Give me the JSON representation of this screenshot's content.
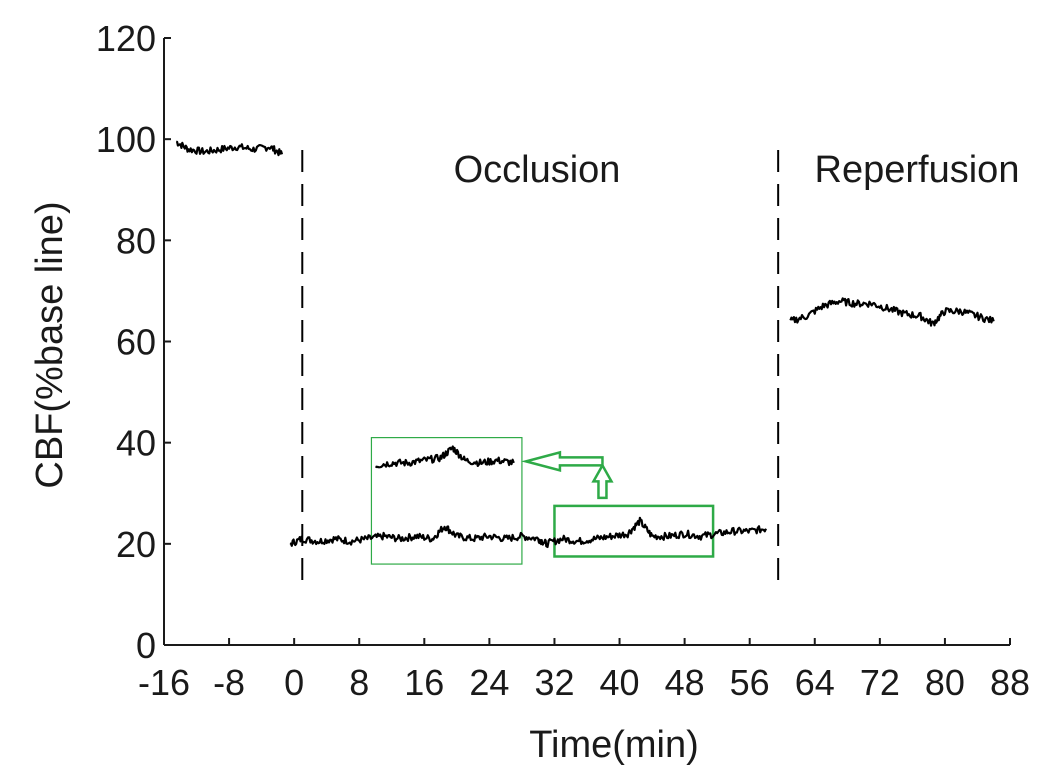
{
  "chart_data": {
    "type": "line",
    "title": "",
    "xlabel": "Time(min)",
    "ylabel": "CBF(%base line)",
    "xlim": [
      -16,
      88
    ],
    "ylim": [
      0,
      120
    ],
    "x_ticks": [
      "-16",
      "-8",
      "0",
      "8",
      "16",
      "24",
      "32",
      "40",
      "48",
      "56",
      "64",
      "72",
      "80",
      "88"
    ],
    "y_ticks": [
      "0",
      "20",
      "40",
      "60",
      "80",
      "100",
      "120"
    ],
    "dividers_x": [
      1,
      59.5
    ],
    "regions": [
      {
        "label": "Occlusion"
      },
      {
        "label": "Reperfusion"
      }
    ],
    "series": [
      {
        "segment": "baseline",
        "x": [
          -14.5,
          -13,
          -11,
          -9,
          -7,
          -5,
          -3,
          -1.5
        ],
        "y": [
          99.5,
          98,
          97.5,
          98,
          98.5,
          98,
          98.5,
          97
        ]
      },
      {
        "segment": "occlusion",
        "x": [
          -0.5,
          1,
          3,
          5,
          7,
          9,
          11,
          13,
          15,
          17,
          18.5,
          20,
          22,
          24,
          26,
          28,
          30,
          31,
          33,
          35,
          37,
          39,
          41,
          42.5,
          44,
          46,
          48,
          50,
          52,
          54,
          56,
          58
        ],
        "y": [
          20,
          21,
          20.5,
          21,
          20.5,
          21,
          21.5,
          21,
          21.5,
          21,
          23.5,
          21.5,
          21,
          21.5,
          21,
          21.5,
          21,
          20,
          21,
          20.5,
          21,
          21.5,
          22,
          24.5,
          21.5,
          21.5,
          22,
          21.5,
          22,
          22.5,
          22.5,
          23
        ]
      },
      {
        "segment": "occlusion-zoom",
        "x": [
          10,
          12,
          14,
          16,
          18,
          19.5,
          21,
          23,
          25,
          27
        ],
        "y": [
          35.5,
          36,
          36,
          36.5,
          37,
          39,
          36.5,
          36,
          36.5,
          36
        ]
      },
      {
        "segment": "reperfusion",
        "x": [
          61,
          63,
          65,
          67,
          69,
          71,
          73,
          75,
          77,
          78.5,
          80,
          82,
          84,
          86
        ],
        "y": [
          64,
          65,
          67,
          68,
          67.5,
          67.5,
          66.5,
          65.5,
          65,
          63.5,
          66,
          66,
          65,
          64
        ]
      }
    ],
    "highlight_boxes": [
      {
        "style": "thin",
        "x_range": [
          9.5,
          28
        ],
        "y_range": [
          16,
          41
        ]
      },
      {
        "style": "thick",
        "x_range": [
          32,
          51.5
        ],
        "y_range": [
          17.5,
          27.5
        ]
      }
    ],
    "colors": {
      "trace": "#000000",
      "highlight": "#2eaa47",
      "axis": "#1a1a1a"
    }
  }
}
